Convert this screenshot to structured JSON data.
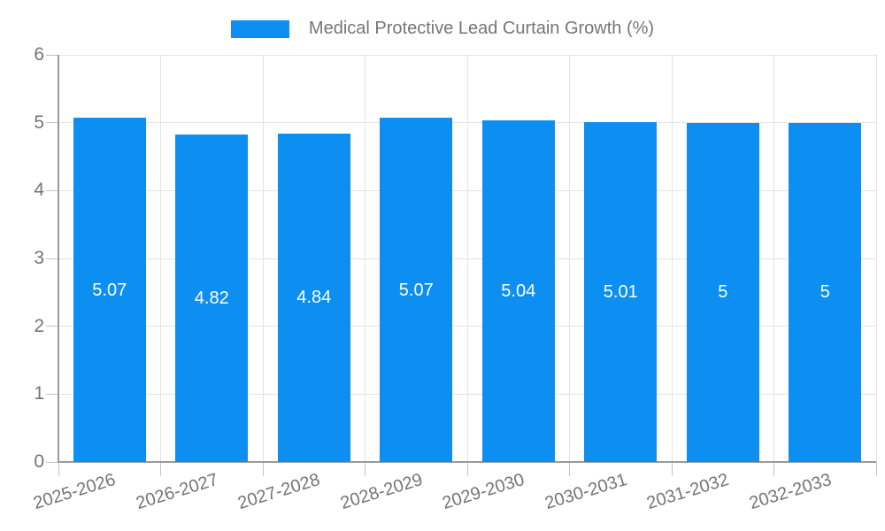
{
  "colors": {
    "bar": "#0d8ff2",
    "grid": "#e3e3e3",
    "axis": "#9a9a9a",
    "tick": "#c4c4c4",
    "tick_text": "#757575",
    "bar_label_text": "#ffffff"
  },
  "legend": {
    "label": "Medical Protective Lead Curtain Growth (%)"
  },
  "chart_data": {
    "type": "bar",
    "title": "Medical Protective Lead Curtain Growth (%)",
    "categories": [
      "2025-2026",
      "2026-2027",
      "2027-2028",
      "2028-2029",
      "2029-2030",
      "2030-2031",
      "2031-2032",
      "2032-2033"
    ],
    "values": [
      5.07,
      4.82,
      4.84,
      5.07,
      5.04,
      5.01,
      5,
      5
    ],
    "value_labels": [
      "5.07",
      "4.82",
      "4.84",
      "5.07",
      "5.04",
      "5.01",
      "5",
      "5"
    ],
    "xlabel": "",
    "ylabel": "",
    "ylim": [
      0,
      6
    ],
    "yticks": [
      0,
      1,
      2,
      3,
      4,
      5,
      6
    ],
    "grid": true,
    "legend_position": "top-center",
    "bar_label_position": "center-inside"
  }
}
